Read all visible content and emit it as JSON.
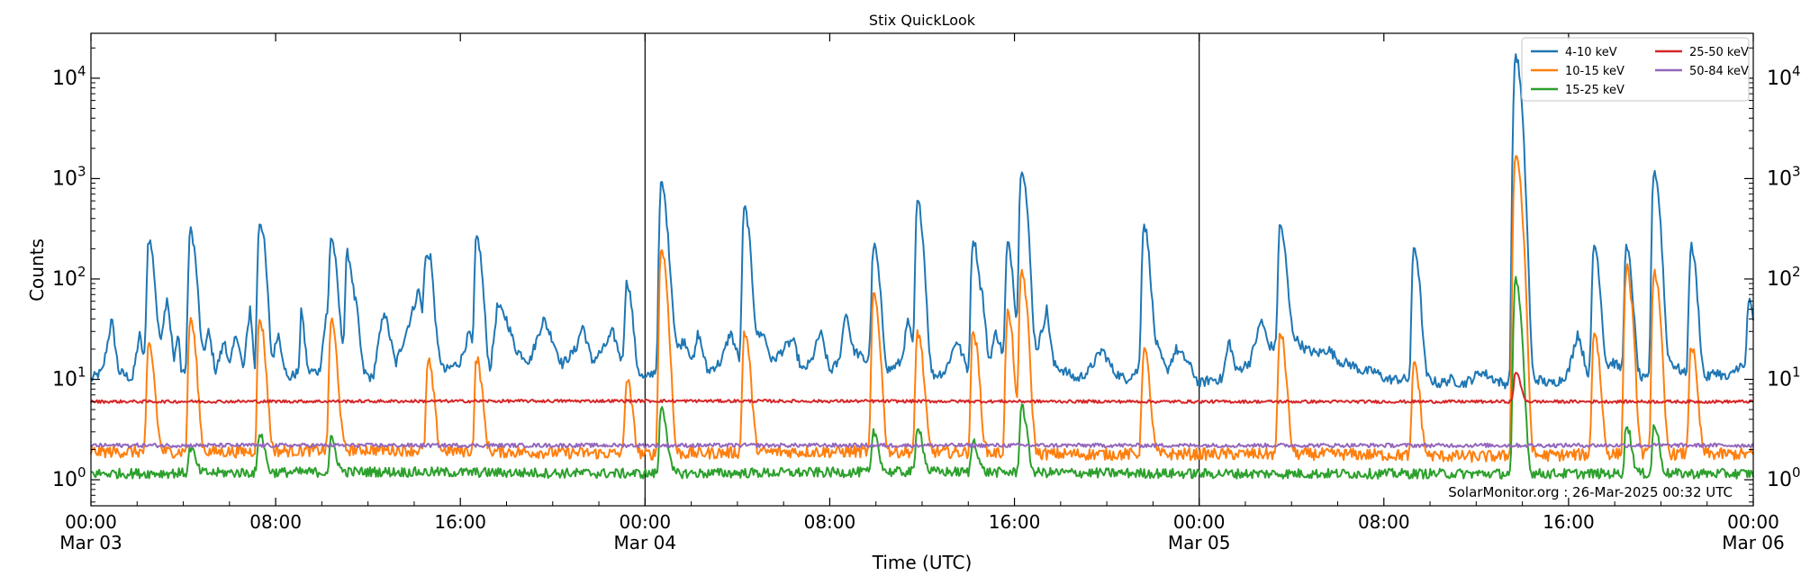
{
  "chart_data": {
    "type": "line",
    "title": "Stix QuickLook",
    "xlabel": "Time (UTC)",
    "ylabel": "Counts",
    "yscale": "log",
    "ylim": [
      0.55,
      28000
    ],
    "xlim_hours": [
      0,
      72
    ],
    "x_ticks": [
      {
        "h": 0,
        "line1": "00:00",
        "line2": "Mar 03"
      },
      {
        "h": 8,
        "line1": "08:00",
        "line2": ""
      },
      {
        "h": 16,
        "line1": "16:00",
        "line2": ""
      },
      {
        "h": 24,
        "line1": "00:00",
        "line2": "Mar 04"
      },
      {
        "h": 32,
        "line1": "08:00",
        "line2": ""
      },
      {
        "h": 40,
        "line1": "16:00",
        "line2": ""
      },
      {
        "h": 48,
        "line1": "00:00",
        "line2": "Mar 05"
      },
      {
        "h": 56,
        "line1": "08:00",
        "line2": ""
      },
      {
        "h": 64,
        "line1": "16:00",
        "line2": ""
      },
      {
        "h": 72,
        "line1": "00:00",
        "line2": "Mar 06"
      }
    ],
    "y_ticks": [
      {
        "v": 1,
        "exp": "0"
      },
      {
        "v": 10,
        "exp": "1"
      },
      {
        "v": 100,
        "exp": "2"
      },
      {
        "v": 1000,
        "exp": "3"
      },
      {
        "v": 10000,
        "exp": "4"
      }
    ],
    "day_boundaries_hours": [
      24,
      48
    ],
    "legend_position": "top-right",
    "annotation": "SolarMonitor.org : 26-Mar-2025 00:32 UTC",
    "grid": false,
    "series": [
      {
        "name": "4-10 keV",
        "color": "#1f77b4",
        "points": [
          [
            0,
            10
          ],
          [
            0.5,
            12
          ],
          [
            0.9,
            40
          ],
          [
            1.2,
            12
          ],
          [
            1.8,
            10
          ],
          [
            2.1,
            28
          ],
          [
            2.4,
            12
          ],
          [
            2.9,
            15
          ],
          [
            3.3,
            70
          ],
          [
            3.6,
            15
          ],
          [
            3.8,
            30
          ],
          [
            3.9,
            12
          ],
          [
            4.2,
            12
          ],
          [
            4.5,
            28
          ],
          [
            4.8,
            15
          ],
          [
            5.1,
            30
          ],
          [
            5.4,
            12
          ],
          [
            5.8,
            25
          ],
          [
            6.0,
            13
          ],
          [
            6.3,
            30
          ],
          [
            6.6,
            12
          ],
          [
            6.9,
            55
          ],
          [
            7.1,
            12
          ],
          [
            7.5,
            50
          ],
          [
            7.8,
            12
          ],
          [
            8.1,
            30
          ],
          [
            8.5,
            10
          ],
          [
            9.0,
            12
          ],
          [
            9.1,
            55
          ],
          [
            9.4,
            12
          ],
          [
            9.9,
            12
          ],
          [
            10.2,
            45
          ],
          [
            10.5,
            12
          ],
          [
            10.9,
            20
          ],
          [
            11.2,
            10
          ],
          [
            11.5,
            45
          ],
          [
            11.8,
            12
          ],
          [
            12.2,
            10
          ],
          [
            12.7,
            50
          ],
          [
            13.2,
            14
          ],
          [
            13.9,
            45
          ],
          [
            14.2,
            80
          ],
          [
            14.5,
            25
          ],
          [
            14.7,
            110
          ],
          [
            15.0,
            20
          ],
          [
            15.3,
            12
          ],
          [
            16.0,
            15
          ],
          [
            16.4,
            30
          ],
          [
            16.7,
            10
          ],
          [
            17.3,
            12
          ],
          [
            17.6,
            55
          ],
          [
            18.0,
            40
          ],
          [
            18.4,
            20
          ],
          [
            19.0,
            15
          ],
          [
            19.6,
            40
          ],
          [
            20.0,
            25
          ],
          [
            20.4,
            14
          ],
          [
            21.0,
            20
          ],
          [
            21.3,
            35
          ],
          [
            21.7,
            15
          ],
          [
            22.2,
            20
          ],
          [
            22.6,
            30
          ],
          [
            23.0,
            15
          ],
          [
            23.3,
            25
          ],
          [
            23.6,
            12
          ],
          [
            24.0,
            10
          ],
          [
            24.4,
            12
          ],
          [
            24.8,
            12
          ],
          [
            25.1,
            50
          ],
          [
            25.4,
            20
          ],
          [
            25.7,
            25
          ],
          [
            26.1,
            15
          ],
          [
            26.3,
            30
          ],
          [
            26.7,
            12
          ],
          [
            27.3,
            15
          ],
          [
            27.7,
            30
          ],
          [
            28.1,
            15
          ],
          [
            28.6,
            20
          ],
          [
            29.1,
            30
          ],
          [
            29.5,
            15
          ],
          [
            30.0,
            20
          ],
          [
            30.4,
            25
          ],
          [
            30.8,
            12
          ],
          [
            31.2,
            15
          ],
          [
            31.6,
            30
          ],
          [
            32.0,
            12
          ],
          [
            32.4,
            15
          ],
          [
            32.7,
            50
          ],
          [
            33.0,
            20
          ],
          [
            33.6,
            15
          ],
          [
            34.0,
            30
          ],
          [
            34.5,
            12
          ],
          [
            35.1,
            15
          ],
          [
            35.4,
            40
          ],
          [
            35.7,
            14
          ],
          [
            36.1,
            10
          ],
          [
            37.0,
            12
          ],
          [
            37.5,
            25
          ],
          [
            38.0,
            12
          ],
          [
            38.4,
            20
          ],
          [
            38.6,
            60
          ],
          [
            38.9,
            15
          ],
          [
            39.2,
            30
          ],
          [
            39.6,
            15
          ],
          [
            40.0,
            15
          ],
          [
            40.3,
            40
          ],
          [
            40.6,
            15
          ],
          [
            41.0,
            20
          ],
          [
            41.4,
            50
          ],
          [
            41.7,
            14
          ],
          [
            42.2,
            12
          ],
          [
            42.7,
            10
          ],
          [
            43.2,
            12
          ],
          [
            43.8,
            20
          ],
          [
            44.3,
            12
          ],
          [
            44.8,
            10
          ],
          [
            45.3,
            12
          ],
          [
            45.6,
            15
          ],
          [
            46.2,
            20
          ],
          [
            46.6,
            12
          ],
          [
            47.0,
            20
          ],
          [
            47.5,
            15
          ],
          [
            48.0,
            9
          ],
          [
            48.5,
            10
          ],
          [
            49.0,
            10
          ],
          [
            49.3,
            25
          ],
          [
            49.6,
            12
          ],
          [
            50.2,
            15
          ],
          [
            50.7,
            40
          ],
          [
            51.0,
            22
          ],
          [
            51.4,
            20
          ],
          [
            51.8,
            35
          ],
          [
            52.2,
            25
          ],
          [
            52.6,
            20
          ],
          [
            53.1,
            18
          ],
          [
            53.6,
            20
          ],
          [
            54.1,
            15
          ],
          [
            54.6,
            14
          ],
          [
            55.1,
            12
          ],
          [
            55.6,
            12
          ],
          [
            56.1,
            10
          ],
          [
            56.6,
            10
          ],
          [
            57.1,
            10
          ],
          [
            57.5,
            9
          ],
          [
            58.0,
            10
          ],
          [
            58.4,
            9
          ],
          [
            58.9,
            10
          ],
          [
            59.4,
            9
          ],
          [
            59.8,
            10
          ],
          [
            60.2,
            12
          ],
          [
            60.8,
            10
          ],
          [
            61.2,
            9
          ],
          [
            61.7,
            10
          ],
          [
            62.2,
            9
          ],
          [
            62.7,
            10
          ],
          [
            63.2,
            9
          ],
          [
            63.7,
            10
          ],
          [
            64.0,
            12
          ],
          [
            64.4,
            30
          ],
          [
            64.8,
            12
          ],
          [
            65.3,
            10
          ],
          [
            65.9,
            15
          ],
          [
            66.4,
            12
          ],
          [
            66.9,
            10
          ],
          [
            67.4,
            10
          ],
          [
            67.9,
            12
          ],
          [
            68.4,
            15
          ],
          [
            68.9,
            12
          ],
          [
            69.4,
            10
          ],
          [
            69.9,
            10
          ],
          [
            70.4,
            12
          ],
          [
            70.9,
            10
          ],
          [
            71.4,
            14
          ],
          [
            72,
            10
          ]
        ],
        "spikes": [
          [
            2.5,
            250
          ],
          [
            4.3,
            300
          ],
          [
            7.3,
            370
          ],
          [
            10.4,
            260
          ],
          [
            11.1,
            180
          ],
          [
            14.5,
            160
          ],
          [
            16.7,
            260
          ],
          [
            23.2,
            90
          ],
          [
            24.7,
            880
          ],
          [
            28.3,
            500
          ],
          [
            33.9,
            210
          ],
          [
            35.8,
            580
          ],
          [
            38.2,
            250
          ],
          [
            39.7,
            220
          ],
          [
            40.3,
            1300
          ],
          [
            45.6,
            350
          ],
          [
            51.5,
            340
          ],
          [
            57.3,
            210
          ],
          [
            61.7,
            17000
          ],
          [
            65.1,
            220
          ],
          [
            66.5,
            200
          ],
          [
            67.7,
            1200
          ],
          [
            69.3,
            210
          ],
          [
            71.8,
            60
          ]
        ]
      },
      {
        "name": "10-15 keV",
        "color": "#ff7f0e",
        "points": [
          [
            0,
            1.9
          ],
          [
            6,
            1.9
          ],
          [
            12,
            2.0
          ],
          [
            18,
            1.9
          ],
          [
            24,
            1.8
          ],
          [
            30,
            1.9
          ],
          [
            36,
            1.9
          ],
          [
            42,
            1.8
          ],
          [
            48,
            1.8
          ],
          [
            54,
            1.8
          ],
          [
            60,
            1.7
          ],
          [
            66,
            1.8
          ],
          [
            72,
            1.8
          ]
        ],
        "spikes": [
          [
            2.5,
            22
          ],
          [
            4.3,
            40
          ],
          [
            7.3,
            40
          ],
          [
            10.4,
            38
          ],
          [
            14.6,
            15
          ],
          [
            16.7,
            16
          ],
          [
            23.2,
            10
          ],
          [
            24.7,
            200
          ],
          [
            28.3,
            30
          ],
          [
            33.9,
            70
          ],
          [
            35.8,
            30
          ],
          [
            38.2,
            30
          ],
          [
            39.7,
            45
          ],
          [
            40.3,
            120
          ],
          [
            45.6,
            20
          ],
          [
            51.5,
            30
          ],
          [
            57.3,
            15
          ],
          [
            61.7,
            1800
          ],
          [
            65.1,
            30
          ],
          [
            66.5,
            130
          ],
          [
            67.7,
            120
          ],
          [
            69.3,
            22
          ]
        ]
      },
      {
        "name": "15-25 keV",
        "color": "#2ca02c",
        "points": [
          [
            0,
            1.15
          ],
          [
            12,
            1.2
          ],
          [
            24,
            1.15
          ],
          [
            36,
            1.2
          ],
          [
            48,
            1.15
          ],
          [
            60,
            1.15
          ],
          [
            72,
            1.15
          ]
        ],
        "spikes": [
          [
            4.3,
            2.1
          ],
          [
            7.3,
            3.0
          ],
          [
            10.4,
            2.5
          ],
          [
            24.7,
            5.5
          ],
          [
            33.9,
            3.0
          ],
          [
            35.8,
            3.5
          ],
          [
            38.2,
            2.5
          ],
          [
            40.3,
            5.5
          ],
          [
            61.7,
            95
          ],
          [
            66.5,
            3.5
          ],
          [
            67.7,
            3.5
          ]
        ]
      },
      {
        "name": "25-50 keV",
        "color": "#d62728",
        "points": [
          [
            0,
            6.0
          ],
          [
            24,
            6.1
          ],
          [
            48,
            6.0
          ],
          [
            72,
            6.0
          ]
        ],
        "spikes": [
          [
            61.7,
            12
          ]
        ]
      },
      {
        "name": "50-84 keV",
        "color": "#9467bd",
        "points": [
          [
            0,
            2.2
          ],
          [
            24,
            2.2
          ],
          [
            48,
            2.2
          ],
          [
            72,
            2.2
          ]
        ],
        "spikes": []
      }
    ]
  }
}
